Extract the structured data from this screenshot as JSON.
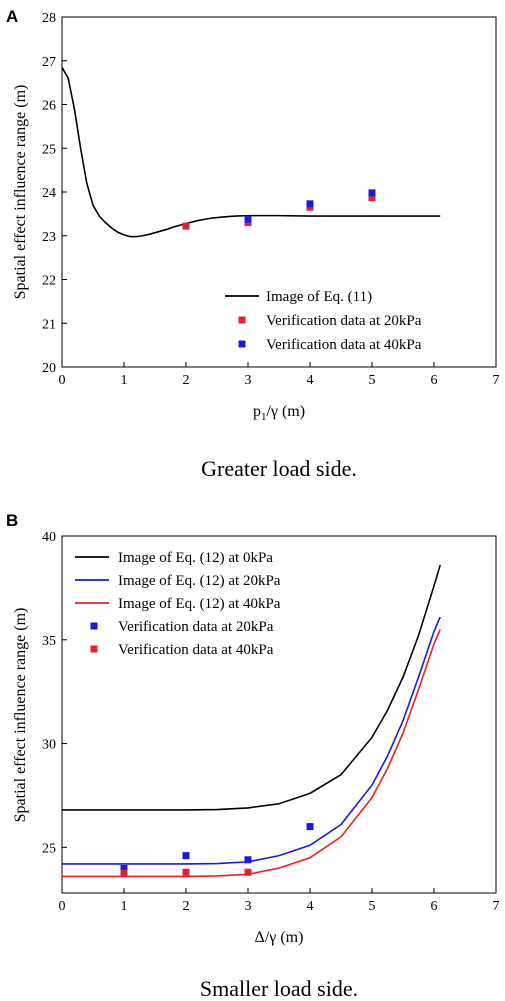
{
  "panels": [
    {
      "letter": "A",
      "caption": "Greater load side.",
      "colors": {
        "black": "#000000",
        "red": "#e8202a",
        "blue": "#1a1adc"
      },
      "chart_data": {
        "type": "line",
        "xlabel": "p1/γ (m)",
        "ylabel": "Spatial effect influence range (m)",
        "xlim": [
          0,
          7
        ],
        "ylim": [
          20,
          28
        ],
        "xticks": [
          0,
          1,
          2,
          3,
          4,
          5,
          6,
          7
        ],
        "yticks": [
          20,
          21,
          22,
          23,
          24,
          25,
          26,
          27,
          28
        ],
        "legend_position": "bottom-right",
        "lines": [
          {
            "name": "Image of Eq. (11)",
            "color": "#000000",
            "x": [
              0.0,
              0.1,
              0.2,
              0.3,
              0.4,
              0.5,
              0.6,
              0.7,
              0.8,
              0.9,
              1.0,
              1.1,
              1.2,
              1.3,
              1.4,
              1.5,
              1.6,
              1.7,
              1.8,
              1.9,
              2.0,
              2.2,
              2.4,
              2.6,
              2.8,
              3.0,
              3.2,
              3.5,
              4.0,
              4.5,
              5.0,
              5.5,
              6.1
            ],
            "y": [
              26.85,
              26.6,
              25.9,
              25.0,
              24.2,
              23.7,
              23.45,
              23.3,
              23.18,
              23.08,
              23.02,
              22.98,
              22.98,
              23.0,
              23.03,
              23.07,
              23.11,
              23.15,
              23.2,
              23.24,
              23.28,
              23.35,
              23.4,
              23.43,
              23.45,
              23.46,
              23.46,
              23.46,
              23.45,
              23.45,
              23.45,
              23.45,
              23.45
            ]
          }
        ],
        "points": [
          {
            "name": "Verification data at 20kPa",
            "color": "#e8202a",
            "x": [
              2,
              3,
              4,
              5
            ],
            "y": [
              23.22,
              23.3,
              23.65,
              23.87
            ]
          },
          {
            "name": "Verification data at 40kPa",
            "color": "#1a1adc",
            "x": [
              3,
              4,
              5
            ],
            "y": [
              23.38,
              23.73,
              23.98
            ]
          }
        ]
      }
    },
    {
      "letter": "B",
      "caption": "Smaller load side.",
      "colors": {
        "black": "#000000",
        "red": "#e8202a",
        "blue": "#1a1adc"
      },
      "chart_data": {
        "type": "line",
        "xlabel": "Δ/γ (m)",
        "ylabel": "Spatial effect influence range (m)",
        "xlim": [
          0,
          7
        ],
        "ylim": [
          22.8,
          40
        ],
        "xticks": [
          0,
          1,
          2,
          3,
          4,
          5,
          6,
          7
        ],
        "yticks": [
          25,
          30,
          35,
          40
        ],
        "legend_position": "top-left",
        "lines": [
          {
            "name": "Image of Eq. (12) at 0kPa",
            "color": "#000000",
            "x": [
              0.0,
              0.5,
              1.0,
              1.5,
              2.0,
              2.5,
              3.0,
              3.5,
              4.0,
              4.5,
              5.0,
              5.25,
              5.5,
              5.75,
              6.0,
              6.1
            ],
            "y": [
              26.8,
              26.8,
              26.8,
              26.8,
              26.8,
              26.82,
              26.9,
              27.1,
              27.6,
              28.5,
              30.3,
              31.6,
              33.2,
              35.2,
              37.6,
              38.6
            ]
          },
          {
            "name": "Image of Eq. (12) at 20kPa",
            "color": "#1a1adc",
            "x": [
              0.0,
              0.5,
              1.0,
              1.5,
              2.0,
              2.5,
              3.0,
              3.5,
              4.0,
              4.5,
              5.0,
              5.25,
              5.5,
              5.75,
              6.0,
              6.1
            ],
            "y": [
              24.2,
              24.2,
              24.2,
              24.2,
              24.2,
              24.22,
              24.3,
              24.6,
              25.1,
              26.1,
              28.0,
              29.4,
              31.1,
              33.2,
              35.4,
              36.1
            ]
          },
          {
            "name": "Image of Eq. (12) at 40kPa",
            "color": "#e8202a",
            "x": [
              0.0,
              0.5,
              1.0,
              1.5,
              2.0,
              2.5,
              3.0,
              3.5,
              4.0,
              4.5,
              5.0,
              5.25,
              5.5,
              5.75,
              6.0,
              6.1
            ],
            "y": [
              23.6,
              23.6,
              23.6,
              23.6,
              23.6,
              23.62,
              23.7,
              24.0,
              24.5,
              25.5,
              27.4,
              28.8,
              30.5,
              32.6,
              34.8,
              35.5
            ]
          }
        ],
        "points": [
          {
            "name": "Verification data at 20kPa",
            "color": "#1a1adc",
            "x": [
              1,
              2,
              3,
              4
            ],
            "y": [
              23.98,
              24.6,
              24.4,
              26.0
            ]
          },
          {
            "name": "Verification data at 40kPa",
            "color": "#e8202a",
            "x": [
              1,
              2,
              3
            ],
            "y": [
              23.75,
              23.8,
              23.8
            ]
          }
        ]
      }
    }
  ]
}
